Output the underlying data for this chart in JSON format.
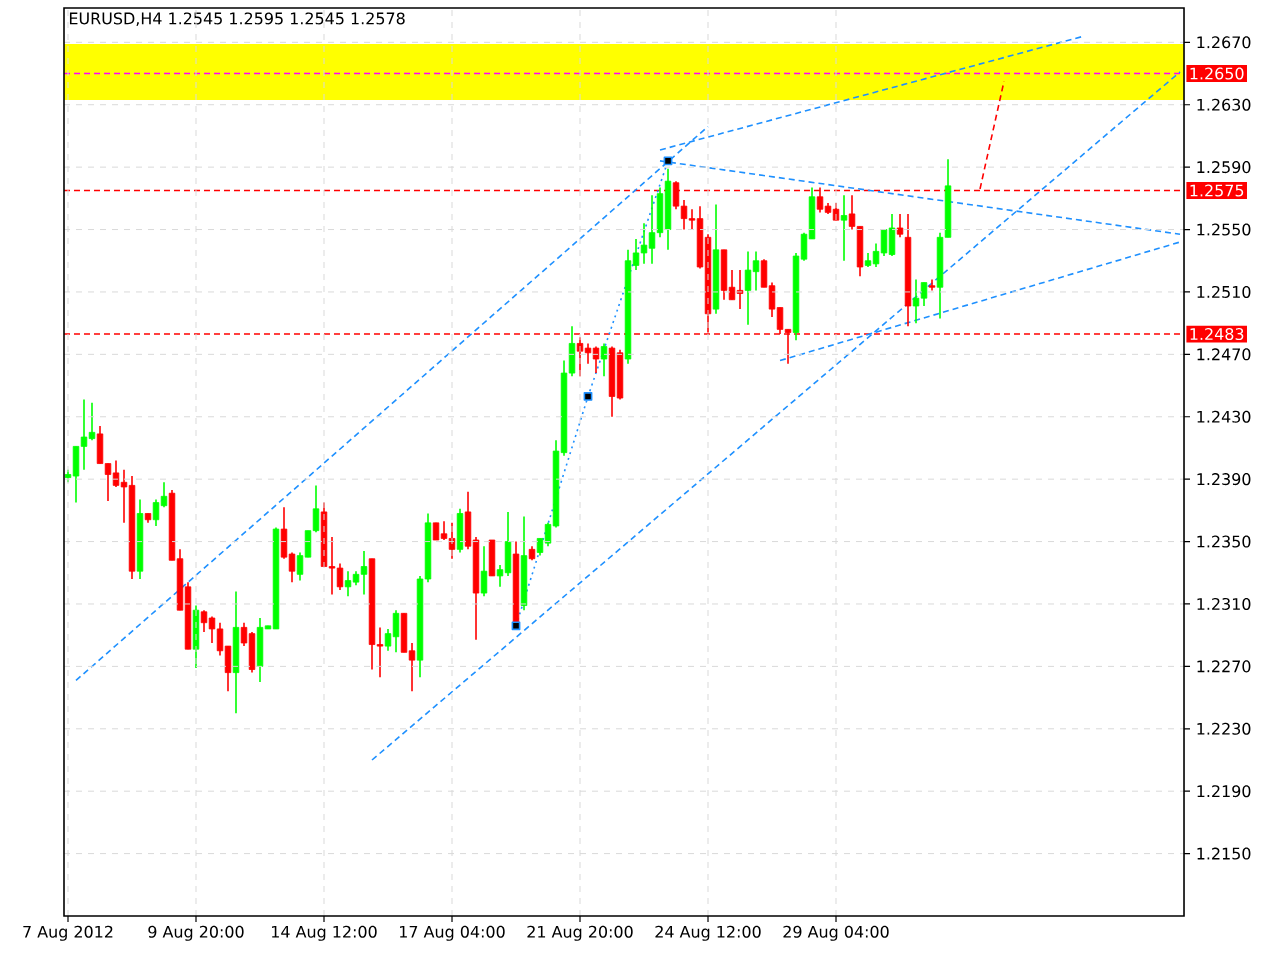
{
  "chart_data": {
    "type": "candlestick",
    "title": "EURUSD,H4  1.2545 1.2595 1.2545 1.2578",
    "categories": [
      "7 Aug 2012",
      null,
      null,
      null,
      null,
      null,
      null,
      null,
      null,
      null,
      null,
      null,
      null,
      null,
      null,
      null,
      "9 Aug 20:00",
      null,
      null,
      null,
      null,
      null,
      null,
      null,
      null,
      null,
      null,
      null,
      null,
      null,
      null,
      null,
      "14 Aug 12:00",
      null,
      null,
      null,
      null,
      null,
      null,
      null,
      null,
      null,
      null,
      null,
      null,
      null,
      null,
      null,
      "17 Aug 04:00",
      null,
      null,
      null,
      null,
      null,
      null,
      null,
      null,
      null,
      null,
      null,
      null,
      null,
      null,
      null,
      "21 Aug 20:00",
      null,
      null,
      null,
      null,
      null,
      null,
      null,
      null,
      null,
      null,
      null,
      null,
      null,
      null,
      null,
      "24 Aug 12:00",
      null,
      null,
      null,
      null,
      null,
      null,
      null,
      null,
      null,
      null,
      null,
      null,
      null,
      null,
      null,
      "29 Aug 04:00",
      null,
      null,
      null,
      null,
      null,
      null,
      null,
      null,
      null,
      null,
      null,
      null,
      null,
      null,
      null,
      null,
      null,
      null,
      null,
      null,
      null,
      null,
      null,
      null,
      null,
      null,
      null,
      null,
      null,
      null,
      null,
      null,
      null,
      null,
      null,
      null,
      null,
      null,
      null,
      null,
      null,
      null,
      null
    ],
    "ohlc": [
      [
        1.2391,
        1.2396,
        1.2388,
        1.2393
      ],
      [
        1.2392,
        1.2411,
        1.2375,
        1.2411
      ],
      [
        1.2411,
        1.2441,
        1.2396,
        1.2417
      ],
      [
        1.2416,
        1.2439,
        1.2415,
        1.242
      ],
      [
        1.2419,
        1.2424,
        1.24,
        1.24
      ],
      [
        1.24,
        1.24,
        1.2376,
        1.2393
      ],
      [
        1.2394,
        1.2402,
        1.2385,
        1.2386
      ],
      [
        1.2388,
        1.2396,
        1.2362,
        1.2385
      ],
      [
        1.2386,
        1.2392,
        1.2326,
        1.2331
      ],
      [
        1.2331,
        1.2377,
        1.2326,
        1.2368
      ],
      [
        1.2368,
        1.2368,
        1.2362,
        1.2364
      ],
      [
        1.2364,
        1.2377,
        1.236,
        1.2375
      ],
      [
        1.2373,
        1.2388,
        1.2372,
        1.2379
      ],
      [
        1.2381,
        1.2383,
        1.2338,
        1.2338
      ],
      [
        1.2339,
        1.2345,
        1.2306,
        1.2306
      ],
      [
        1.2321,
        1.2324,
        1.2281,
        1.2281
      ],
      [
        1.2281,
        1.2309,
        1.2269,
        1.2306
      ],
      [
        1.2305,
        1.2306,
        1.2292,
        1.2298
      ],
      [
        1.2301,
        1.2302,
        1.2285,
        1.2294
      ],
      [
        1.2294,
        1.2298,
        1.2277,
        1.228
      ],
      [
        1.2283,
        1.2283,
        1.2254,
        1.2266
      ],
      [
        1.2266,
        1.2318,
        1.224,
        1.2295
      ],
      [
        1.2295,
        1.2298,
        1.2283,
        1.2285
      ],
      [
        1.2291,
        1.2292,
        1.2266,
        1.2268
      ],
      [
        1.227,
        1.2301,
        1.226,
        1.2295
      ],
      [
        1.2294,
        1.2296,
        1.2294,
        1.2296
      ],
      [
        1.2294,
        1.2359,
        1.2294,
        1.2358
      ],
      [
        1.2358,
        1.2372,
        1.2339,
        1.234
      ],
      [
        1.2342,
        1.2343,
        1.2324,
        1.2331
      ],
      [
        1.2329,
        1.2343,
        1.2325,
        1.2341
      ],
      [
        1.234,
        1.2357,
        1.234,
        1.2357
      ],
      [
        1.2357,
        1.2386,
        1.2356,
        1.2371
      ],
      [
        1.2369,
        1.2375,
        1.2334,
        1.2334
      ],
      [
        1.2334,
        1.2353,
        1.2316,
        1.2333
      ],
      [
        1.2333,
        1.2336,
        1.2319,
        1.2321
      ],
      [
        1.2321,
        1.2331,
        1.2315,
        1.2325
      ],
      [
        1.2324,
        1.2331,
        1.2322,
        1.2329
      ],
      [
        1.2329,
        1.2344,
        1.2316,
        1.2334
      ],
      [
        1.2339,
        1.2339,
        1.2268,
        1.2284
      ],
      [
        1.2284,
        1.2295,
        1.2263,
        1.2283
      ],
      [
        1.2283,
        1.2294,
        1.228,
        1.2291
      ],
      [
        1.2289,
        1.2306,
        1.2279,
        1.2304
      ],
      [
        1.2304,
        1.2304,
        1.2279,
        1.2279
      ],
      [
        1.228,
        1.2285,
        1.2254,
        1.2274
      ],
      [
        1.2274,
        1.2328,
        1.2263,
        1.2326
      ],
      [
        1.2326,
        1.2368,
        1.2324,
        1.2362
      ],
      [
        1.2362,
        1.2362,
        1.2351,
        1.2351
      ],
      [
        1.2355,
        1.2363,
        1.2351,
        1.2352
      ],
      [
        1.2352,
        1.2362,
        1.2339,
        1.2345
      ],
      [
        1.2345,
        1.2371,
        1.2343,
        1.2368
      ],
      [
        1.2369,
        1.2382,
        1.2345,
        1.2347
      ],
      [
        1.2351,
        1.2353,
        1.2287,
        1.2317
      ],
      [
        1.2317,
        1.2347,
        1.2315,
        1.2331
      ],
      [
        1.2351,
        1.2351,
        1.2328,
        1.2328
      ],
      [
        1.2328,
        1.2335,
        1.2321,
        1.2332
      ],
      [
        1.233,
        1.2369,
        1.2328,
        1.235
      ],
      [
        1.2342,
        1.235,
        1.2296,
        1.2296
      ],
      [
        1.2309,
        1.2366,
        1.2306,
        1.2341
      ],
      [
        1.2345,
        1.2347,
        1.2338,
        1.2339
      ],
      [
        1.2343,
        1.2352,
        1.2341,
        1.2352
      ],
      [
        1.2349,
        1.2362,
        1.2347,
        1.2361
      ],
      [
        1.236,
        1.2415,
        1.2359,
        1.2408
      ],
      [
        1.2407,
        1.2466,
        1.2405,
        1.2458
      ],
      [
        1.2458,
        1.2488,
        1.2456,
        1.2477
      ],
      [
        1.2477,
        1.2481,
        1.2456,
        1.2472
      ],
      [
        1.2474,
        1.2477,
        1.2464,
        1.2471
      ],
      [
        1.2474,
        1.2475,
        1.2458,
        1.2467
      ],
      [
        1.2467,
        1.2477,
        1.2456,
        1.2475
      ],
      [
        1.2474,
        1.2475,
        1.243,
        1.2443
      ],
      [
        1.2471,
        1.2473,
        1.2441,
        1.2442
      ],
      [
        1.2467,
        1.2537,
        1.2464,
        1.253
      ],
      [
        1.2527,
        1.2544,
        1.2524,
        1.2535
      ],
      [
        1.2535,
        1.2554,
        1.2528,
        1.254
      ],
      [
        1.2538,
        1.2572,
        1.2528,
        1.2548
      ],
      [
        1.2548,
        1.2577,
        1.2545,
        1.2573
      ],
      [
        1.255,
        1.2589,
        1.2537,
        1.2581
      ],
      [
        1.258,
        1.2581,
        1.2563,
        1.2565
      ],
      [
        1.2565,
        1.2569,
        1.255,
        1.2557
      ],
      [
        1.2557,
        1.2563,
        1.255,
        1.2556
      ],
      [
        1.2557,
        1.2565,
        1.2525,
        1.2526
      ],
      [
        1.2545,
        1.2547,
        1.2484,
        1.2496
      ],
      [
        1.2499,
        1.2566,
        1.2496,
        1.2537
      ],
      [
        1.2537,
        1.2537,
        1.2505,
        1.2511
      ],
      [
        1.2513,
        1.2524,
        1.2505,
        1.2505
      ],
      [
        1.2511,
        1.2524,
        1.2499,
        1.2509
      ],
      [
        1.2511,
        1.2536,
        1.2489,
        1.2524
      ],
      [
        1.2523,
        1.2536,
        1.2511,
        1.253
      ],
      [
        1.253,
        1.2531,
        1.2513,
        1.2513
      ],
      [
        1.2514,
        1.2516,
        1.2494,
        1.2499
      ],
      [
        1.25,
        1.25,
        1.2483,
        1.2486
      ],
      [
        1.2486,
        1.2486,
        1.2464,
        1.2484
      ],
      [
        1.2484,
        1.2535,
        1.2479,
        1.2533
      ],
      [
        1.2531,
        1.2548,
        1.253,
        1.2547
      ],
      [
        1.2544,
        1.2577,
        1.2544,
        1.2571
      ],
      [
        1.2571,
        1.2577,
        1.2561,
        1.2563
      ],
      [
        1.2565,
        1.2567,
        1.256,
        1.2561
      ],
      [
        1.2563,
        1.2567,
        1.2556,
        1.2556
      ],
      [
        1.2556,
        1.2572,
        1.253,
        1.2559
      ],
      [
        1.256,
        1.2572,
        1.255,
        1.2552
      ],
      [
        1.2552,
        1.2552,
        1.252,
        1.2526
      ],
      [
        1.2527,
        1.2535,
        1.2526,
        1.253
      ],
      [
        1.2528,
        1.2541,
        1.2526,
        1.2536
      ],
      [
        1.2535,
        1.255,
        1.2533,
        1.255
      ],
      [
        1.2534,
        1.256,
        1.2533,
        1.2551
      ],
      [
        1.2551,
        1.256,
        1.2545,
        1.2547
      ],
      [
        1.2545,
        1.256,
        1.2488,
        1.2501
      ],
      [
        1.2501,
        1.2518,
        1.249,
        1.2506
      ],
      [
        1.2506,
        1.2516,
        1.2501,
        1.2516
      ],
      [
        1.2514,
        1.2518,
        1.2511,
        1.2513
      ],
      [
        1.2513,
        1.2548,
        1.2493,
        1.2545
      ],
      [
        1.2545,
        1.2595,
        1.2545,
        1.2578
      ],
      null,
      null,
      null,
      null,
      null,
      null,
      null,
      null,
      null,
      null,
      null,
      null,
      null,
      null,
      null,
      null,
      null,
      null,
      null,
      null,
      null,
      null,
      null,
      null,
      null,
      null,
      null,
      null,
      null
    ],
    "series": [
      {
        "type": "line",
        "color": "#1e90ff",
        "line_style": "dashed",
        "values": [
          null,
          1.2261,
          null,
          null,
          null,
          null,
          null,
          null,
          null,
          null,
          null,
          null,
          null,
          null,
          null,
          null,
          null,
          null,
          null,
          null,
          null,
          null,
          null,
          null,
          null,
          null,
          null,
          null,
          null,
          null,
          null,
          null,
          null,
          null,
          null,
          null,
          null,
          null,
          null,
          null,
          null,
          null,
          null,
          null,
          null,
          null,
          null,
          null,
          null,
          null,
          null,
          null,
          null,
          null,
          null,
          null,
          null,
          null,
          null,
          null,
          null,
          null,
          null,
          null,
          null,
          null,
          null,
          null,
          null,
          null,
          null,
          null,
          null,
          null,
          null,
          null,
          null,
          null,
          null,
          null,
          1.2616,
          null,
          null,
          null,
          null,
          null,
          null,
          null,
          null,
          null,
          null,
          null,
          null,
          null,
          null,
          null,
          null,
          null,
          null,
          null,
          null,
          null,
          null,
          null,
          null,
          null,
          null,
          null,
          null,
          null,
          null,
          null,
          null,
          null,
          null,
          null,
          null,
          null,
          null,
          null,
          null,
          null,
          null,
          null,
          null,
          null,
          null,
          null,
          null,
          null,
          null,
          null,
          null,
          null,
          null,
          null,
          null,
          null,
          null,
          null
        ]
      },
      {
        "type": "line",
        "color": "#1e90ff",
        "line_style": "dashed",
        "values": [
          null,
          null,
          null,
          null,
          null,
          null,
          null,
          null,
          null,
          null,
          null,
          null,
          null,
          null,
          null,
          null,
          null,
          null,
          null,
          null,
          null,
          null,
          null,
          null,
          null,
          null,
          null,
          null,
          null,
          null,
          null,
          null,
          null,
          null,
          null,
          null,
          null,
          null,
          1.221,
          null,
          null,
          null,
          null,
          null,
          null,
          null,
          null,
          null,
          null,
          null,
          null,
          null,
          null,
          null,
          null,
          null,
          null,
          null,
          null,
          null,
          null,
          null,
          null,
          null,
          null,
          null,
          null,
          null,
          null,
          null,
          null,
          null,
          null,
          null,
          null,
          null,
          null,
          null,
          null,
          null,
          null,
          null,
          null,
          null,
          null,
          null,
          null,
          null,
          null,
          null,
          null,
          null,
          null,
          null,
          null,
          null,
          null,
          null,
          null,
          null,
          null,
          null,
          null,
          null,
          null,
          null,
          null,
          null,
          null,
          null,
          null,
          null,
          null,
          null,
          null,
          null,
          null,
          null,
          null,
          null,
          null,
          null,
          null,
          null,
          null,
          null,
          null,
          null,
          null,
          null,
          null,
          null,
          null,
          null,
          null,
          null,
          null,
          null,
          null,
          1.2651
        ]
      },
      {
        "type": "line",
        "color": "#1e90ff",
        "line_style": "dashed",
        "values": [
          null,
          null,
          null,
          null,
          null,
          null,
          null,
          null,
          null,
          null,
          null,
          null,
          null,
          null,
          null,
          null,
          null,
          null,
          null,
          null,
          null,
          null,
          null,
          null,
          null,
          null,
          null,
          null,
          null,
          null,
          null,
          null,
          null,
          null,
          null,
          null,
          null,
          null,
          null,
          null,
          null,
          null,
          null,
          null,
          null,
          null,
          null,
          null,
          null,
          null,
          null,
          null,
          null,
          null,
          null,
          null,
          null,
          null,
          null,
          null,
          null,
          null,
          null,
          null,
          null,
          null,
          null,
          null,
          null,
          null,
          null,
          null,
          null,
          null,
          1.2601,
          null,
          null,
          null,
          null,
          null,
          null,
          null,
          null,
          null,
          null,
          null,
          null,
          null,
          null,
          null,
          null,
          null,
          null,
          null,
          null,
          null,
          null,
          null,
          null,
          null,
          null,
          null,
          null,
          null,
          null,
          null,
          null,
          null,
          null,
          null,
          null,
          null,
          null,
          null,
          null,
          null,
          null,
          null,
          null,
          null,
          null,
          null,
          null,
          null,
          null,
          null,
          null,
          1.2674,
          null,
          null,
          null,
          null,
          null,
          null,
          null,
          null,
          null,
          null,
          null,
          null
        ]
      },
      {
        "type": "line",
        "color": "#1e90ff",
        "line_style": "dashed",
        "values": [
          null,
          null,
          null,
          null,
          null,
          null,
          null,
          null,
          null,
          null,
          null,
          null,
          null,
          null,
          null,
          null,
          null,
          null,
          null,
          null,
          null,
          null,
          null,
          null,
          null,
          null,
          null,
          null,
          null,
          null,
          null,
          null,
          null,
          null,
          null,
          null,
          null,
          null,
          null,
          null,
          null,
          null,
          null,
          null,
          null,
          null,
          null,
          null,
          null,
          null,
          null,
          null,
          null,
          null,
          null,
          null,
          null,
          null,
          null,
          null,
          null,
          null,
          null,
          null,
          null,
          null,
          null,
          null,
          null,
          null,
          null,
          null,
          null,
          null,
          1.2594,
          null,
          null,
          null,
          null,
          null,
          null,
          null,
          null,
          null,
          null,
          null,
          null,
          null,
          null,
          null,
          null,
          null,
          null,
          null,
          null,
          null,
          null,
          null,
          null,
          null,
          null,
          null,
          null,
          null,
          null,
          null,
          null,
          null,
          null,
          null,
          null,
          null,
          null,
          null,
          null,
          null,
          null,
          null,
          null,
          null,
          null,
          null,
          null,
          null,
          null,
          null,
          null,
          null,
          null,
          null,
          null,
          null,
          null,
          null,
          null,
          null,
          null,
          null,
          null,
          1.2547
        ]
      },
      {
        "type": "line",
        "color": "#1e90ff",
        "line_style": "dashed",
        "values": [
          null,
          null,
          null,
          null,
          null,
          null,
          null,
          null,
          null,
          null,
          null,
          null,
          null,
          null,
          null,
          null,
          null,
          null,
          null,
          null,
          null,
          null,
          null,
          null,
          null,
          null,
          null,
          null,
          null,
          null,
          null,
          null,
          null,
          null,
          null,
          null,
          null,
          null,
          null,
          null,
          null,
          null,
          null,
          null,
          null,
          null,
          null,
          null,
          null,
          null,
          null,
          null,
          null,
          null,
          null,
          null,
          null,
          null,
          null,
          null,
          null,
          null,
          null,
          null,
          null,
          null,
          null,
          null,
          null,
          null,
          null,
          null,
          null,
          null,
          null,
          null,
          null,
          null,
          null,
          null,
          null,
          null,
          null,
          null,
          null,
          null,
          null,
          null,
          null,
          1.2466,
          null,
          null,
          null,
          null,
          null,
          null,
          null,
          null,
          null,
          null,
          null,
          null,
          null,
          null,
          null,
          null,
          null,
          null,
          null,
          null,
          null,
          null,
          null,
          null,
          null,
          null,
          null,
          null,
          null,
          null,
          null,
          null,
          null,
          null,
          null,
          null,
          null,
          null,
          null,
          null,
          null,
          null,
          null,
          null,
          null,
          null,
          null,
          null,
          null,
          1.2542
        ]
      },
      {
        "type": "line",
        "color": "#1e90ff",
        "line_style": "dotted",
        "marker": "square",
        "values": [
          null,
          null,
          null,
          null,
          null,
          null,
          null,
          null,
          null,
          null,
          null,
          null,
          null,
          null,
          null,
          null,
          null,
          null,
          null,
          null,
          null,
          null,
          null,
          null,
          null,
          null,
          null,
          null,
          null,
          null,
          null,
          null,
          null,
          null,
          null,
          null,
          null,
          null,
          null,
          null,
          null,
          null,
          null,
          null,
          null,
          null,
          null,
          null,
          null,
          null,
          null,
          null,
          null,
          null,
          null,
          null,
          1.2296,
          null,
          null,
          null,
          null,
          null,
          null,
          null,
          null,
          1.2443,
          null,
          null,
          null,
          null,
          null,
          null,
          null,
          null,
          null,
          1.2594,
          null,
          null,
          null,
          null,
          null,
          null,
          null,
          null,
          null,
          null,
          null,
          null,
          null,
          null,
          null,
          null,
          null,
          null,
          null,
          null,
          null,
          null,
          null,
          null,
          null,
          null,
          null,
          null,
          null,
          null,
          null,
          null,
          null,
          null,
          null,
          null,
          null,
          null,
          null,
          null,
          null,
          null,
          null,
          null,
          null,
          null,
          null,
          null,
          null,
          null,
          null,
          null,
          null,
          null,
          null,
          null,
          null,
          null,
          null,
          null,
          null,
          null,
          null,
          null
        ]
      },
      {
        "type": "line",
        "color": "#ff0000",
        "line_style": "dashed",
        "values": [
          null,
          null,
          null,
          null,
          null,
          null,
          null,
          null,
          null,
          null,
          null,
          null,
          null,
          null,
          null,
          null,
          null,
          null,
          null,
          null,
          null,
          null,
          null,
          null,
          null,
          null,
          null,
          null,
          null,
          null,
          null,
          null,
          null,
          null,
          null,
          null,
          null,
          null,
          null,
          null,
          null,
          null,
          null,
          null,
          null,
          null,
          null,
          null,
          null,
          null,
          null,
          null,
          null,
          null,
          null,
          null,
          null,
          null,
          null,
          null,
          null,
          null,
          null,
          null,
          null,
          null,
          null,
          null,
          null,
          null,
          null,
          null,
          null,
          null,
          null,
          null,
          null,
          null,
          null,
          null,
          null,
          null,
          null,
          null,
          null,
          null,
          null,
          null,
          null,
          null,
          null,
          null,
          null,
          null,
          null,
          null,
          null,
          null,
          null,
          null,
          null,
          null,
          null,
          null,
          null,
          null,
          null,
          null,
          null,
          null,
          null,
          null,
          null,
          null,
          1.2576,
          null,
          null,
          1.2645,
          null,
          null,
          null,
          null,
          null,
          null,
          null,
          null,
          null,
          null,
          null,
          null,
          null,
          null,
          null,
          null,
          null,
          null,
          null,
          null,
          null,
          null
        ]
      }
    ],
    "ylim": [
      1.211,
      1.2692
    ],
    "yticks": [
      {
        "value": 1.215,
        "label": "1.2150"
      },
      {
        "value": 1.219,
        "label": "1.2190"
      },
      {
        "value": 1.223,
        "label": "1.2230"
      },
      {
        "value": 1.227,
        "label": "1.2270"
      },
      {
        "value": 1.231,
        "label": "1.2310"
      },
      {
        "value": 1.235,
        "label": "1.2350"
      },
      {
        "value": 1.239,
        "label": "1.2390"
      },
      {
        "value": 1.243,
        "label": "1.2430"
      },
      {
        "value": 1.247,
        "label": "1.2470"
      },
      {
        "value": 1.251,
        "label": "1.2510"
      },
      {
        "value": 1.255,
        "label": "1.2550"
      },
      {
        "value": 1.259,
        "label": "1.2590"
      },
      {
        "value": 1.263,
        "label": "1.2630"
      },
      {
        "value": 1.267,
        "label": "1.2670"
      }
    ],
    "bands": [
      {
        "axis": "y",
        "from": 1.2633,
        "to": 1.2669,
        "color": "#ffff00"
      }
    ],
    "ref_lines": [
      {
        "axis": "y",
        "value": 1.265,
        "label": "1.2650",
        "color": "#ff00ff",
        "line_style": "dashed"
      },
      {
        "axis": "y",
        "value": 1.2575,
        "label": "1.2575",
        "color": "#ff0000",
        "line_style": "dashed"
      },
      {
        "axis": "y",
        "value": 1.2483,
        "label": "1.2483",
        "color": "#ff0000",
        "line_style": "dashed"
      }
    ],
    "grid": true
  }
}
